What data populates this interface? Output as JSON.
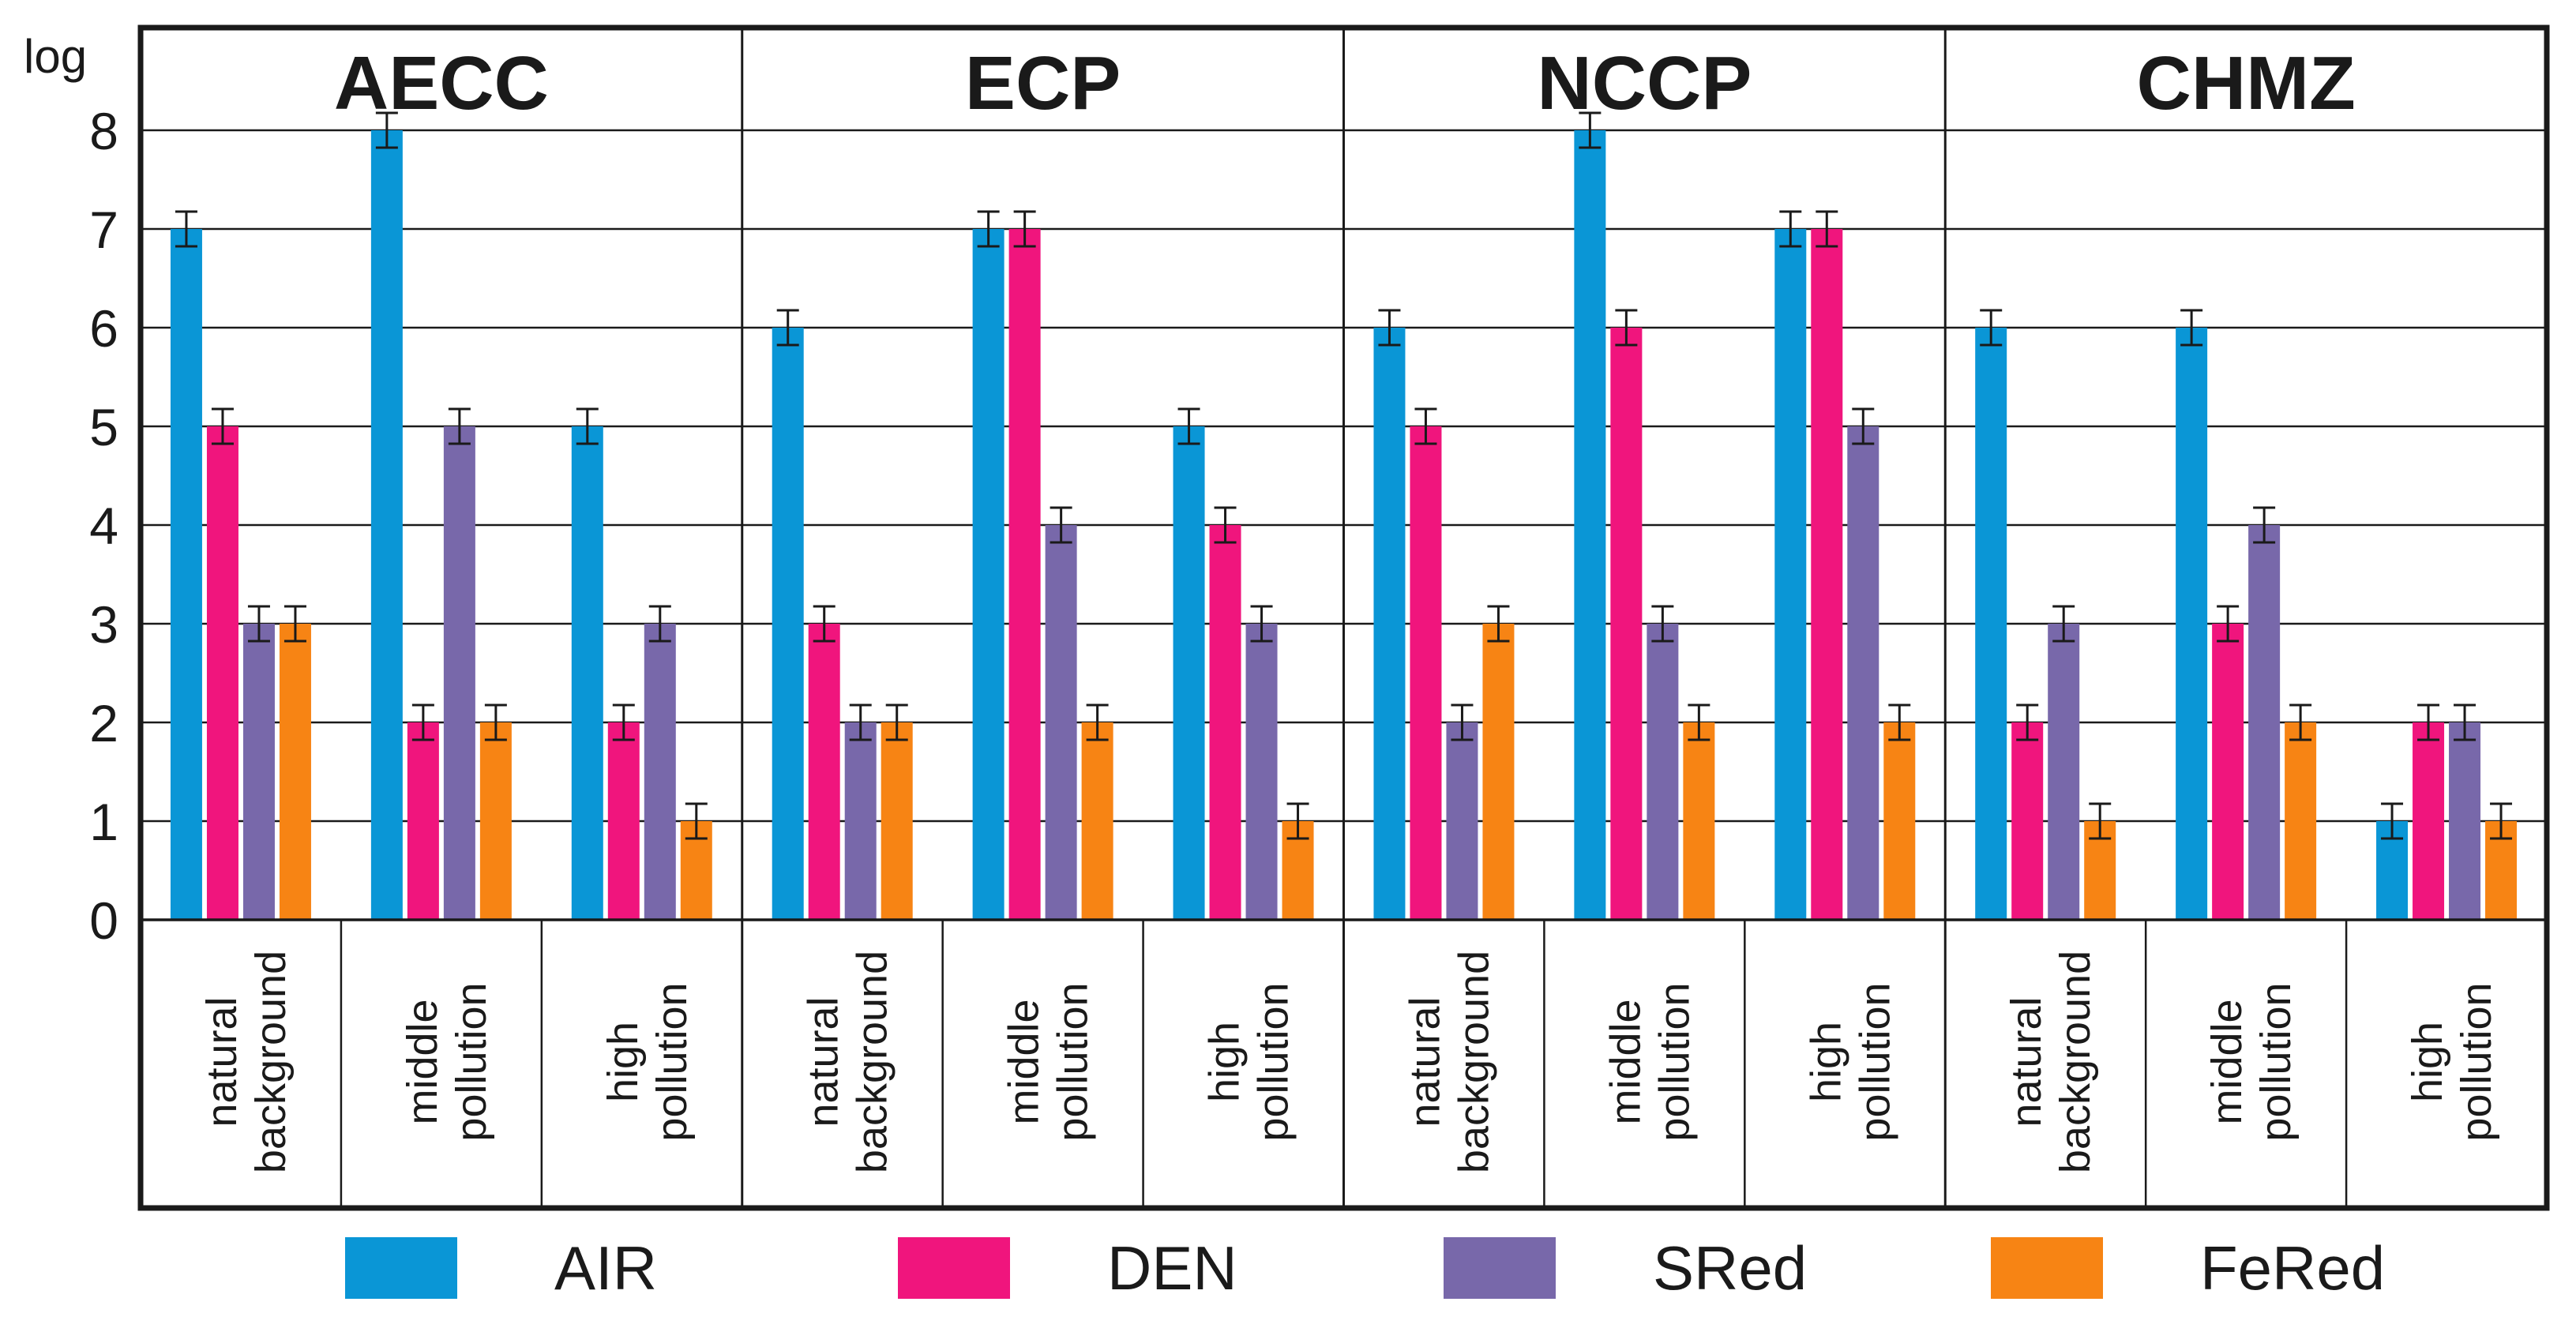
{
  "chart_data": {
    "type": "bar",
    "ylabel": "log",
    "ylim": [
      0,
      8
    ],
    "yticks": [
      "0",
      "1",
      "2",
      "3",
      "4",
      "5",
      "6",
      "7",
      "8"
    ],
    "grid": true,
    "error_bars": true,
    "legend_position": "bottom",
    "series": [
      {
        "name": "AIR",
        "color": "#0a96d6"
      },
      {
        "name": "DEN",
        "color": "#f0157d"
      },
      {
        "name": "SRed",
        "color": "#7868aa"
      },
      {
        "name": "FeRed",
        "color": "#f78414"
      }
    ],
    "panels": [
      {
        "title": "AECC",
        "groups": [
          {
            "label": [
              "natural",
              "background"
            ],
            "values": [
              7,
              5,
              3,
              3
            ]
          },
          {
            "label": [
              "middle",
              "pollution"
            ],
            "values": [
              8,
              2,
              5,
              2
            ]
          },
          {
            "label": [
              "high",
              "pollution"
            ],
            "values": [
              5,
              2,
              3,
              1
            ]
          }
        ]
      },
      {
        "title": "ECP",
        "groups": [
          {
            "label": [
              "natural",
              "background"
            ],
            "values": [
              6,
              3,
              2,
              2
            ]
          },
          {
            "label": [
              "middle",
              "pollution"
            ],
            "values": [
              7,
              7,
              4,
              2
            ]
          },
          {
            "label": [
              "high",
              "pollution"
            ],
            "values": [
              5,
              4,
              3,
              1
            ]
          }
        ]
      },
      {
        "title": "NCCP",
        "groups": [
          {
            "label": [
              "natural",
              "background"
            ],
            "values": [
              6,
              5,
              2,
              3
            ]
          },
          {
            "label": [
              "middle",
              "pollution"
            ],
            "values": [
              8,
              6,
              3,
              2
            ]
          },
          {
            "label": [
              "high",
              "pollution"
            ],
            "values": [
              7,
              7,
              5,
              2
            ]
          }
        ]
      },
      {
        "title": "CHMZ",
        "groups": [
          {
            "label": [
              "natural",
              "background"
            ],
            "values": [
              6,
              2,
              3,
              1
            ]
          },
          {
            "label": [
              "middle",
              "pollution"
            ],
            "values": [
              6,
              3,
              4,
              2
            ]
          },
          {
            "label": [
              "high",
              "pollution"
            ],
            "values": [
              1,
              2,
              2,
              1
            ]
          }
        ]
      }
    ]
  }
}
